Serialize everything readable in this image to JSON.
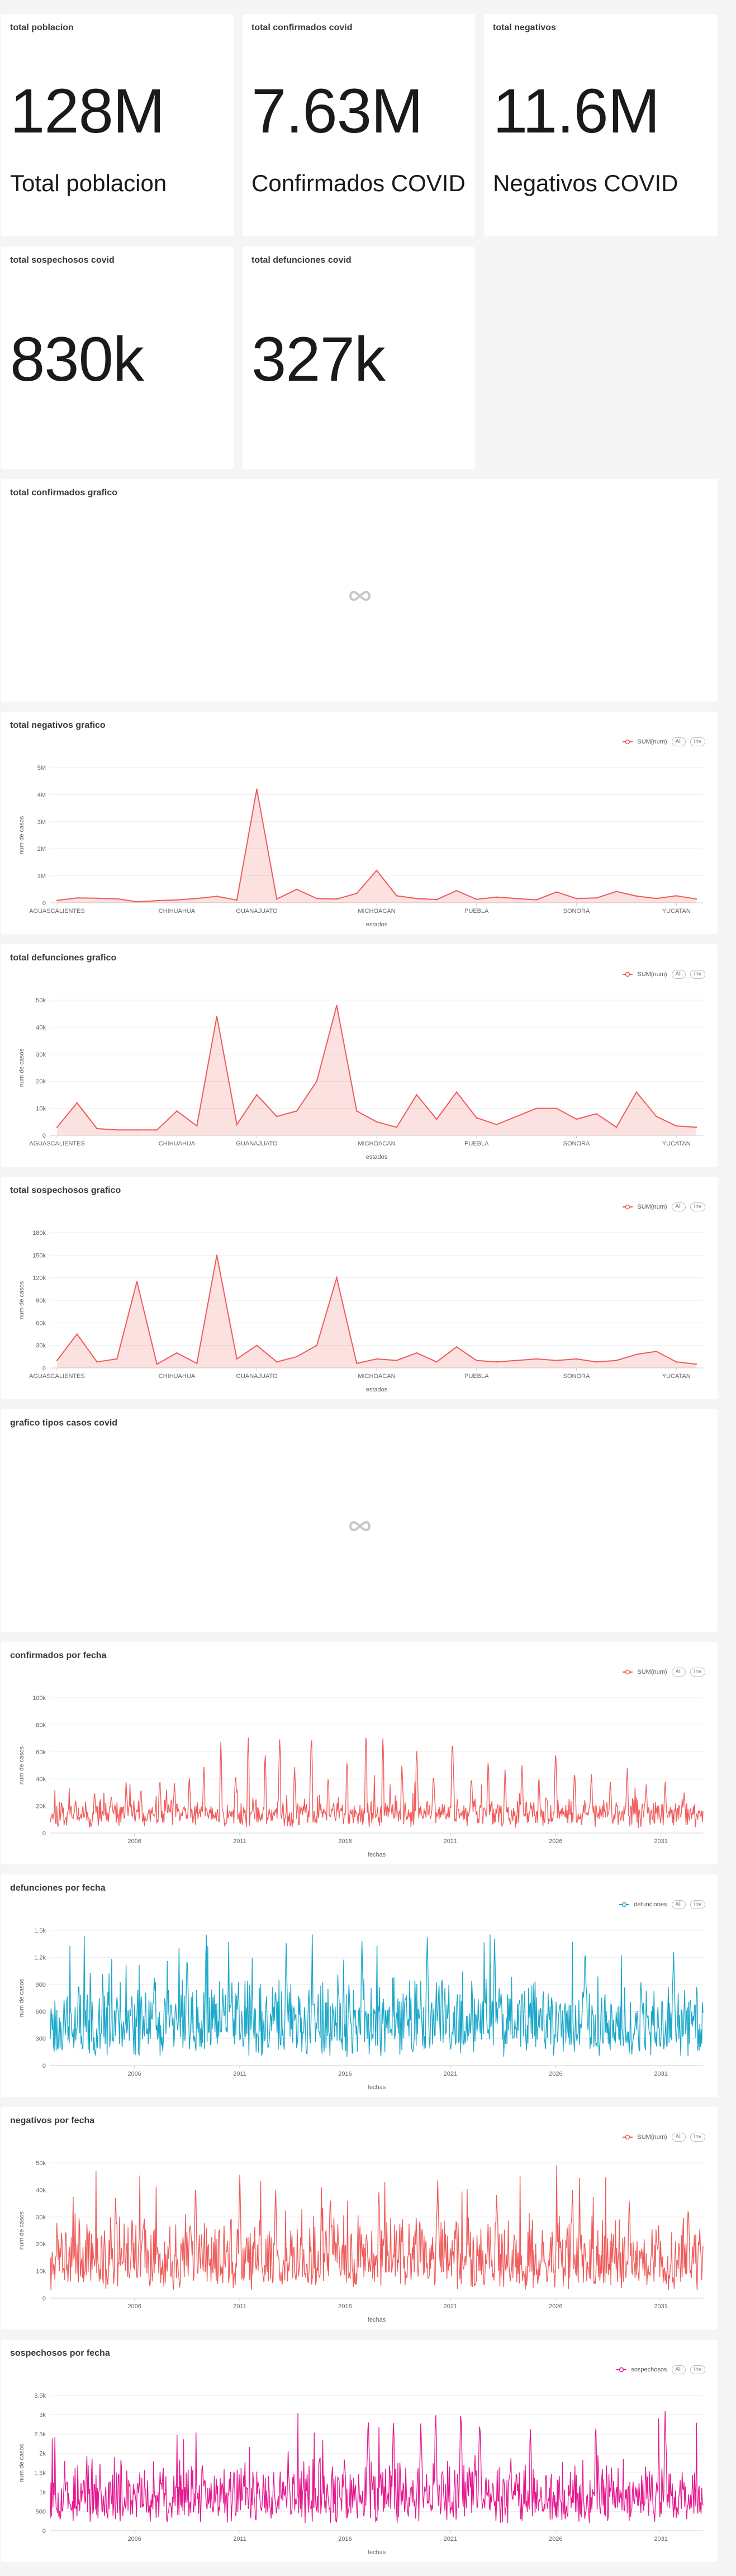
{
  "kpis": [
    {
      "title": "total poblacion",
      "value": "128M",
      "subheader": "Total poblacion"
    },
    {
      "title": "total confirmados covid",
      "value": "7.63M",
      "subheader": "Confirmados COVID"
    },
    {
      "title": "total negativos",
      "value": "11.6M",
      "subheader": "Negativos COVID"
    },
    {
      "title": "total sospechosos covid",
      "value": "830k",
      "subheader": ""
    },
    {
      "title": "total defunciones covid",
      "value": "327k",
      "subheader": ""
    }
  ],
  "loading_panels": [
    {
      "title": "total confirmados grafico"
    },
    {
      "title": "grafico tipos casos covid"
    }
  ],
  "legend_pills": [
    "All",
    "Inv"
  ],
  "chart_data": [
    {
      "id": "negativos-estado",
      "title": "total negativos grafico",
      "type": "area",
      "legend": "SUM(num)",
      "color": "#f05a5a",
      "xlabel": "estados",
      "ylabel": "num de casos",
      "ylim": [
        0,
        5000000
      ],
      "y_ticks": [
        "0",
        "1M",
        "2M",
        "3M",
        "4M",
        "5M"
      ],
      "x_tick_labels": [
        "AGUASCALIENTES",
        "CHIHUAHUA",
        "GUANAJUATO",
        "MICHOACAN",
        "PUEBLA",
        "SONORA",
        "YUCATAN"
      ],
      "x_tick_index": [
        0,
        6,
        10,
        16,
        21,
        26,
        31
      ],
      "values": [
        90000,
        180000,
        170000,
        150000,
        40000,
        80000,
        110000,
        160000,
        240000,
        100000,
        4200000,
        140000,
        500000,
        160000,
        140000,
        350000,
        1200000,
        260000,
        160000,
        120000,
        450000,
        130000,
        210000,
        160000,
        110000,
        400000,
        160000,
        180000,
        420000,
        250000,
        160000,
        260000,
        140000
      ]
    },
    {
      "id": "defunciones-estado",
      "title": "total defunciones grafico",
      "type": "area",
      "legend": "SUM(num)",
      "color": "#f05a5a",
      "xlabel": "estados",
      "ylabel": "num de casos",
      "ylim": [
        0,
        50000
      ],
      "y_ticks": [
        "0",
        "10k",
        "20k",
        "30k",
        "40k",
        "50k"
      ],
      "x_tick_labels": [
        "AGUASCALIENTES",
        "CHIHUAHUA",
        "GUANAJUATO",
        "MICHOACAN",
        "PUEBLA",
        "SONORA",
        "YUCATAN"
      ],
      "x_tick_index": [
        0,
        6,
        10,
        16,
        21,
        26,
        31
      ],
      "values": [
        3000,
        12000,
        2500,
        2000,
        2000,
        2000,
        9000,
        3500,
        44000,
        4000,
        15000,
        7000,
        9000,
        20000,
        48000,
        9000,
        5000,
        3000,
        15000,
        6000,
        16000,
        6500,
        4000,
        7000,
        10000,
        10000,
        6000,
        8000,
        3000,
        16000,
        7000,
        3500,
        3000
      ]
    },
    {
      "id": "sospechosos-estado",
      "title": "total sospechosos grafico",
      "type": "area",
      "legend": "SUM(num)",
      "color": "#f05a5a",
      "xlabel": "estados",
      "ylabel": "num de casos",
      "ylim": [
        0,
        180000
      ],
      "y_ticks": [
        "0",
        "30k",
        "60k",
        "90k",
        "120k",
        "150k",
        "180k"
      ],
      "x_tick_labels": [
        "AGUASCALIENTES",
        "CHIHUAHUA",
        "GUANAJUATO",
        "MICHOACAN",
        "PUEBLA",
        "SONORA",
        "YUCATAN"
      ],
      "x_tick_index": [
        0,
        6,
        10,
        16,
        21,
        26,
        31
      ],
      "values": [
        10000,
        45000,
        8000,
        12000,
        115000,
        5000,
        20000,
        6000,
        150000,
        12000,
        30000,
        8000,
        15000,
        30000,
        120000,
        6000,
        12000,
        10000,
        20000,
        8000,
        28000,
        10000,
        8000,
        10000,
        12000,
        10000,
        12000,
        8000,
        10000,
        18000,
        22000,
        8000,
        5000
      ]
    },
    {
      "id": "confirmados-fecha",
      "title": "confirmados por fecha",
      "type": "line",
      "legend": "SUM(num)",
      "color": "#f05a5a",
      "xlabel": "fechas",
      "ylabel": "num de casos",
      "ylim": [
        0,
        100000
      ],
      "y_ticks": [
        "0",
        "20k",
        "40k",
        "60k",
        "80k",
        "100k"
      ],
      "x_years": [
        "2006",
        "2011",
        "2016",
        "2021",
        "2026",
        "2031"
      ],
      "x_start": 2002,
      "x_end": 2033,
      "base": 15000,
      "noise": 12000,
      "seed": 11,
      "peaks": [
        [
          2003.2,
          26000
        ],
        [
          2004.1,
          32000
        ],
        [
          2004.9,
          30000
        ],
        [
          2005.6,
          38000
        ],
        [
          2006.3,
          35000
        ],
        [
          2007.2,
          42000
        ],
        [
          2007.9,
          38000
        ],
        [
          2008.6,
          44000
        ],
        [
          2009.3,
          52000
        ],
        [
          2010.1,
          68000
        ],
        [
          2010.8,
          46000
        ],
        [
          2011.4,
          72000
        ],
        [
          2012.2,
          62000
        ],
        [
          2012.9,
          74000
        ],
        [
          2013.6,
          51000
        ],
        [
          2014.4,
          76000
        ],
        [
          2015.2,
          44000
        ],
        [
          2016.1,
          57000
        ],
        [
          2017.0,
          78000
        ],
        [
          2017.8,
          73000
        ],
        [
          2018.7,
          52000
        ],
        [
          2019.4,
          65000
        ],
        [
          2020.2,
          46000
        ],
        [
          2021.1,
          73000
        ],
        [
          2022.0,
          44000
        ],
        [
          2022.8,
          56000
        ],
        [
          2023.6,
          48000
        ],
        [
          2024.4,
          52000
        ],
        [
          2025.2,
          44000
        ],
        [
          2026.0,
          64000
        ],
        [
          2026.9,
          48000
        ],
        [
          2027.7,
          46000
        ],
        [
          2028.6,
          40000
        ],
        [
          2029.4,
          48000
        ],
        [
          2030.3,
          36000
        ],
        [
          2031.2,
          38000
        ],
        [
          2032.1,
          30000
        ]
      ]
    },
    {
      "id": "defunciones-fecha",
      "title": "defunciones por fecha",
      "type": "line",
      "legend": "defunciones",
      "color": "#1aa7c9",
      "xlabel": "fechas",
      "ylabel": "num de casos",
      "ylim": [
        0,
        1500
      ],
      "y_ticks": [
        "0",
        "300",
        "600",
        "900",
        "1.2k",
        "1.5k"
      ],
      "x_years": [
        "2006",
        "2011",
        "2016",
        "2021",
        "2026",
        "2031"
      ],
      "x_start": 2002,
      "x_end": 2033,
      "base": 350,
      "noise": 700,
      "seed": 23,
      "peaks": [
        [
          2008.5,
          1300
        ],
        [
          2013.2,
          1350
        ],
        [
          2016.8,
          1400
        ],
        [
          2019.9,
          1480
        ],
        [
          2023.1,
          1420
        ],
        [
          2027.4,
          1380
        ],
        [
          2031.6,
          1300
        ]
      ]
    },
    {
      "id": "negativos-fecha",
      "title": "negativos por fecha",
      "type": "line",
      "legend": "SUM(num)",
      "color": "#f05a5a",
      "xlabel": "fechas",
      "ylabel": "num de casos",
      "ylim": [
        0,
        50000
      ],
      "y_ticks": [
        "0",
        "10k",
        "20k",
        "30k",
        "40k",
        "50k"
      ],
      "x_years": [
        "2006",
        "2011",
        "2016",
        "2021",
        "2026",
        "2031"
      ],
      "x_start": 2002,
      "x_end": 2033,
      "base": 10000,
      "noise": 22000,
      "seed": 37,
      "peaks": [
        [
          2005.1,
          38000
        ],
        [
          2008.9,
          44000
        ],
        [
          2011.0,
          46000
        ],
        [
          2012.7,
          42000
        ],
        [
          2015.3,
          40000
        ],
        [
          2017.6,
          42000
        ],
        [
          2020.4,
          44000
        ],
        [
          2023.2,
          40000
        ],
        [
          2026.8,
          42000
        ],
        [
          2029.5,
          38000
        ],
        [
          2032.3,
          36000
        ]
      ]
    },
    {
      "id": "sospechosos-fecha",
      "title": "sospechosos por fecha",
      "type": "line",
      "legend": "sospechosos",
      "color": "#e6188f",
      "xlabel": "fechas",
      "ylabel": "num de casos",
      "ylim": [
        0,
        3500
      ],
      "y_ticks": [
        "0",
        "500",
        "1k",
        "1.5k",
        "2k",
        "2.5k",
        "3k",
        "3.5k"
      ],
      "x_years": [
        "2006",
        "2011",
        "2016",
        "2021",
        "2026",
        "2031"
      ],
      "x_start": 2002,
      "x_end": 2033,
      "base": 700,
      "noise": 1300,
      "seed": 53,
      "peaks": [
        [
          2017.1,
          3100
        ],
        [
          2018.3,
          3000
        ],
        [
          2019.6,
          2900
        ],
        [
          2020.3,
          3200
        ],
        [
          2021.5,
          3300
        ],
        [
          2022.4,
          3000
        ],
        [
          2024.8,
          2800
        ],
        [
          2027.9,
          2900
        ],
        [
          2031.2,
          3100
        ]
      ]
    }
  ]
}
